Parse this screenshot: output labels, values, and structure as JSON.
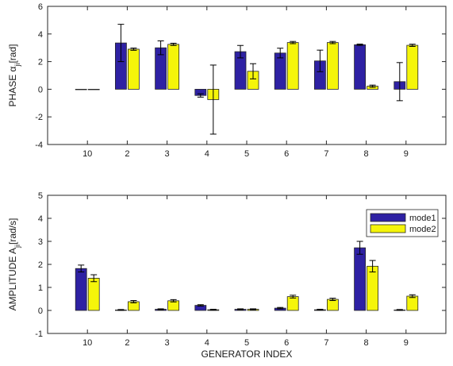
{
  "chart_data": [
    {
      "type": "bar",
      "categories": [
        "10",
        "2",
        "3",
        "4",
        "5",
        "6",
        "7",
        "8",
        "9"
      ],
      "ylabel": "PHASE α",
      "ylabel_sub": "ji",
      "ylabel_unit": "[rad]",
      "ylim": [
        -4,
        6
      ],
      "yticks": [
        -4,
        -2,
        0,
        2,
        4,
        6
      ],
      "grid": false,
      "series": [
        {
          "values": [
            0.0,
            3.35,
            3.0,
            -0.45,
            2.72,
            2.62,
            2.05,
            3.22,
            0.55
          ],
          "err": [
            0.0,
            1.35,
            0.5,
            0.12,
            0.45,
            0.35,
            0.78,
            0.05,
            1.38
          ],
          "color": "#2e21a3"
        },
        {
          "values": [
            0.0,
            2.9,
            3.25,
            -0.75,
            1.3,
            3.38,
            3.38,
            0.22,
            3.18
          ],
          "err": [
            0.0,
            0.08,
            0.08,
            2.5,
            0.55,
            0.08,
            0.08,
            0.08,
            0.08
          ],
          "color": "#f5f50a"
        }
      ]
    },
    {
      "type": "bar",
      "categories": [
        "10",
        "2",
        "3",
        "4",
        "5",
        "6",
        "7",
        "8",
        "9"
      ],
      "xlabel": "GENERATOR INDEX",
      "ylabel": "AMPLITUDE A",
      "ylabel_sub": "ji",
      "ylabel_unit": "[rad/s]",
      "ylim": [
        -1,
        5
      ],
      "yticks": [
        -1,
        0,
        1,
        2,
        3,
        4,
        5
      ],
      "grid": false,
      "legend": "top-right",
      "series": [
        {
          "name": "mode1",
          "values": [
            1.82,
            0.02,
            0.05,
            0.22,
            0.05,
            0.1,
            0.03,
            2.72,
            0.02
          ],
          "err": [
            0.15,
            0.02,
            0.02,
            0.03,
            0.02,
            0.03,
            0.02,
            0.28,
            0.02
          ],
          "color": "#2e21a3"
        },
        {
          "name": "mode2",
          "values": [
            1.4,
            0.38,
            0.42,
            0.03,
            0.05,
            0.6,
            0.48,
            1.92,
            0.62
          ],
          "err": [
            0.15,
            0.05,
            0.05,
            0.02,
            0.02,
            0.06,
            0.05,
            0.25,
            0.06
          ],
          "color": "#f5f50a"
        }
      ]
    }
  ]
}
